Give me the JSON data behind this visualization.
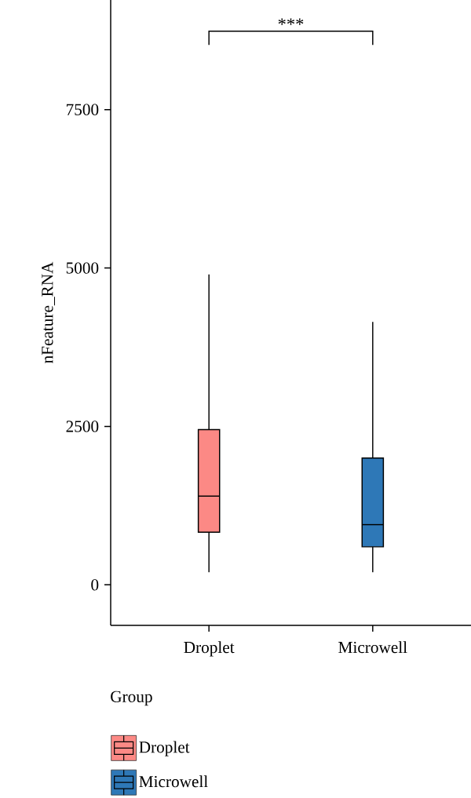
{
  "chart_data": {
    "type": "box",
    "categories": [
      "Droplet",
      "Microwell"
    ],
    "series": [
      {
        "name": "Droplet",
        "color": "#fc8985",
        "boxes": [
          {
            "low": 200,
            "q1": 830,
            "median": 1400,
            "q3": 2450,
            "high": 4900
          },
          null
        ]
      },
      {
        "name": "Microwell",
        "color": "#2e78b7",
        "boxes": [
          null,
          {
            "low": 200,
            "q1": 600,
            "median": 950,
            "q3": 2000,
            "high": 4150
          }
        ]
      }
    ],
    "ylabel": "nFeature_RNA",
    "legend_title": "Group",
    "legend": "bottom",
    "ylim": [
      -640,
      9230
    ],
    "yticks": [
      0,
      2500,
      5000,
      7500
    ],
    "annotations": [
      "***"
    ]
  }
}
